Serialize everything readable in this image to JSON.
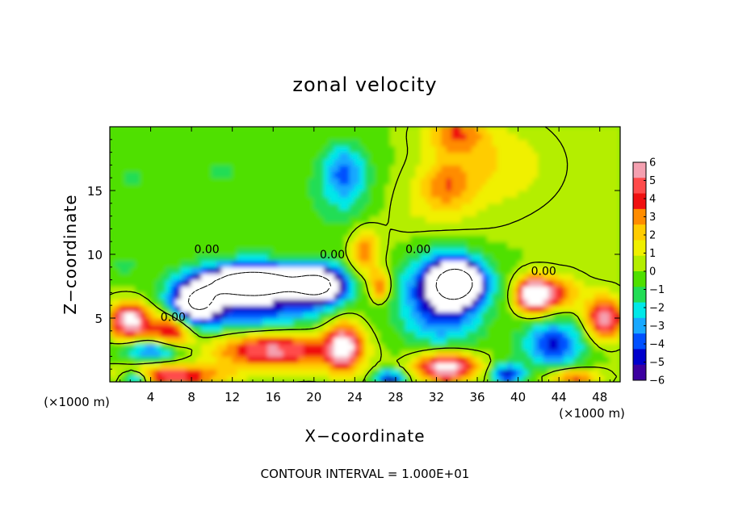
{
  "chart_data": {
    "type": "heatmap",
    "title": "zonal velocity",
    "xlabel": "X−coordinate",
    "ylabel": "Z−coordinate",
    "x_unit_left": "(×1000 m)",
    "x_unit_right": "(×1000 m)",
    "footer": "CONTOUR INTERVAL = 1.000E+01",
    "xlim": [
      0,
      50
    ],
    "ylim": [
      0,
      20
    ],
    "x_ticks": [
      "4",
      "8",
      "12",
      "16",
      "20",
      "24",
      "28",
      "32",
      "36",
      "40",
      "44",
      "48"
    ],
    "x_tick_values": [
      4,
      8,
      12,
      16,
      20,
      24,
      28,
      32,
      36,
      40,
      44,
      48
    ],
    "y_ticks": [
      "5",
      "10",
      "15"
    ],
    "y_tick_values": [
      5,
      10,
      15
    ],
    "colorbar": {
      "min": -6,
      "max": 6,
      "ticks": [
        "6",
        "5",
        "4",
        "3",
        "2",
        "1",
        "0",
        "−1",
        "−2",
        "−3",
        "−4",
        "−5",
        "−6"
      ],
      "colors": [
        "#f4a0b0",
        "#ff4b4b",
        "#f01010",
        "#ff8c00",
        "#ffcc00",
        "#f0f000",
        "#b4ee00",
        "#4fe000",
        "#22dd55",
        "#00e8e8",
        "#18a8ff",
        "#0050ff",
        "#0000cc",
        "#3c00a0"
      ]
    },
    "contour_labels": [
      {
        "text": "0.00",
        "x": 9.5,
        "y": 10.4
      },
      {
        "text": "0.00",
        "x": 6.2,
        "y": 5.1
      },
      {
        "text": "0.00",
        "x": 21.8,
        "y": 10.0
      },
      {
        "text": "0.00",
        "x": 30.2,
        "y": 10.4
      },
      {
        "text": "0.00",
        "x": 42.5,
        "y": 8.7
      }
    ],
    "field_features": [
      {
        "value": 3.2,
        "x": 34,
        "y": 19.5,
        "sx": 3,
        "sy": 1.6
      },
      {
        "value": 2.5,
        "x": 33,
        "y": 15.5,
        "sx": 2.5,
        "sy": 2
      },
      {
        "value": 1.6,
        "x": 38,
        "y": 17,
        "sx": 5,
        "sy": 3
      },
      {
        "value": 0.9,
        "x": 31,
        "y": 13.5,
        "sx": 6,
        "sy": 3
      },
      {
        "value": -2.8,
        "x": 23,
        "y": 16.5,
        "sx": 2,
        "sy": 2.2
      },
      {
        "value": -1.4,
        "x": 23,
        "y": 14.5,
        "sx": 4,
        "sy": 3.5
      },
      {
        "value": -0.9,
        "x": 11,
        "y": 16.5,
        "sx": 6,
        "sy": 2.5
      },
      {
        "value": -0.8,
        "x": 2,
        "y": 16,
        "sx": 3,
        "sy": 2
      },
      {
        "value": 3.5,
        "x": 25,
        "y": 10.2,
        "sx": 1.5,
        "sy": 1.8
      },
      {
        "value": 4.0,
        "x": 26.5,
        "y": 7.5,
        "sx": 1,
        "sy": 1.2
      },
      {
        "value": -12,
        "x": 14,
        "y": 7.8,
        "sx": 4.5,
        "sy": 1.1
      },
      {
        "value": -9,
        "x": 8.5,
        "y": 6.2,
        "sx": 2.2,
        "sy": 1.4
      },
      {
        "value": -10,
        "x": 20.5,
        "y": 7.6,
        "sx": 2.5,
        "sy": 1.3
      },
      {
        "value": -5,
        "x": 14,
        "y": 6.5,
        "sx": 7,
        "sy": 2.8
      },
      {
        "value": -11,
        "x": 34,
        "y": 7.8,
        "sx": 2.5,
        "sy": 1.6
      },
      {
        "value": -5,
        "x": 32.5,
        "y": 6.5,
        "sx": 4,
        "sy": 3.5
      },
      {
        "value": 7,
        "x": 2,
        "y": 4.8,
        "sx": 2,
        "sy": 1.4
      },
      {
        "value": 5,
        "x": 6,
        "y": 4,
        "sx": 2,
        "sy": 1.5
      },
      {
        "value": -4.5,
        "x": 4.5,
        "y": 2.5,
        "sx": 3,
        "sy": 0.8
      },
      {
        "value": 6,
        "x": 16,
        "y": 2.6,
        "sx": 6,
        "sy": 1.5
      },
      {
        "value": 6,
        "x": 23,
        "y": 2.8,
        "sx": 1.8,
        "sy": 2
      },
      {
        "value": 5,
        "x": 6,
        "y": 0.5,
        "sx": 5,
        "sy": 0.8
      },
      {
        "value": -5,
        "x": 2.5,
        "y": 0.3,
        "sx": 1.5,
        "sy": 0.6
      },
      {
        "value": -5,
        "x": 27.5,
        "y": 0.3,
        "sx": 1.4,
        "sy": 0.6
      },
      {
        "value": 7,
        "x": 33,
        "y": 1.2,
        "sx": 3,
        "sy": 1.2
      },
      {
        "value": -5,
        "x": 39,
        "y": 0.6,
        "sx": 1.6,
        "sy": 0.8
      },
      {
        "value": 7,
        "x": 41.5,
        "y": 6.8,
        "sx": 1.6,
        "sy": 1.3
      },
      {
        "value": 4,
        "x": 43.5,
        "y": 7,
        "sx": 2.5,
        "sy": 1.3
      },
      {
        "value": 6,
        "x": 48.5,
        "y": 5,
        "sx": 1.8,
        "sy": 1.6
      },
      {
        "value": -4.5,
        "x": 43.5,
        "y": 3,
        "sx": 3,
        "sy": 1.8
      },
      {
        "value": 4,
        "x": 45.5,
        "y": 0.4,
        "sx": 2.5,
        "sy": 0.6
      },
      {
        "value": -1.2,
        "x": 1.5,
        "y": 9.2,
        "sx": 1.3,
        "sy": 0.8
      }
    ]
  }
}
